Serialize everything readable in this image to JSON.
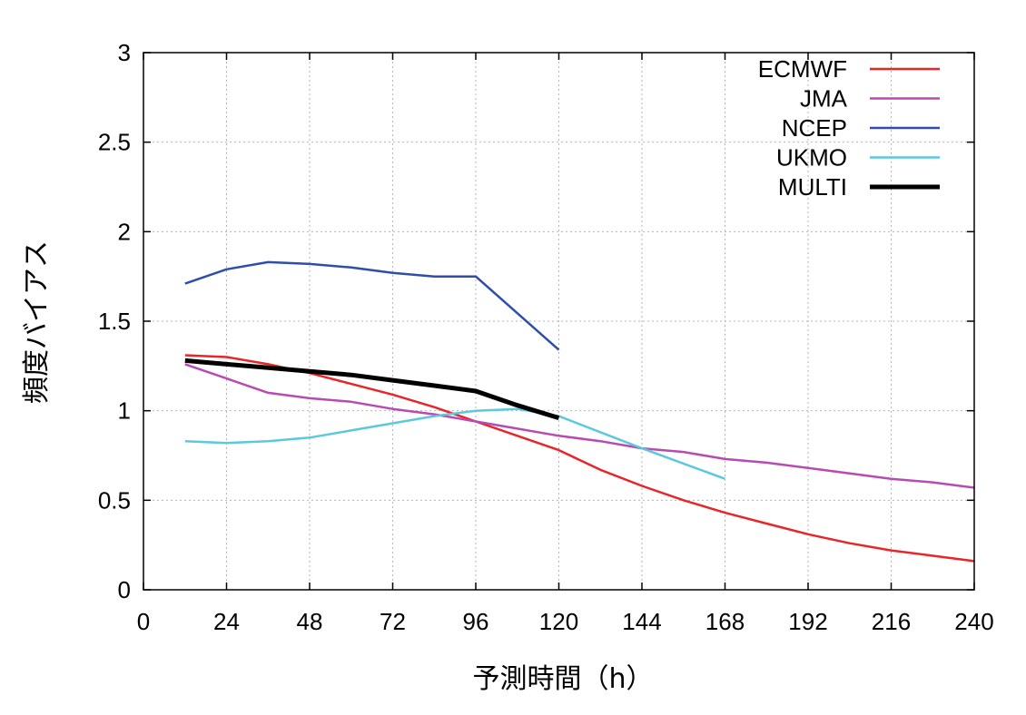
{
  "chart_data": {
    "type": "line",
    "title": "",
    "xlabel": "予測時間（h）",
    "ylabel": "頻度バイアス",
    "xlim": [
      0,
      240
    ],
    "ylim": [
      0,
      3
    ],
    "xticks": [
      0,
      24,
      48,
      72,
      96,
      120,
      144,
      168,
      192,
      216,
      240
    ],
    "yticks": [
      0,
      0.5,
      1,
      1.5,
      2,
      2.5,
      3
    ],
    "xtick_labels": [
      "0",
      "24",
      "48",
      "72",
      "96",
      "120",
      "144",
      "168",
      "192",
      "216",
      "240"
    ],
    "ytick_labels": [
      "0",
      "0.5",
      "1",
      "1.5",
      "2",
      "2.5",
      "3"
    ],
    "grid": true,
    "legend_position": "top-right",
    "series": [
      {
        "name": "ECMWF",
        "color": "#e8262a",
        "width": 2.5,
        "x": [
          12,
          24,
          36,
          48,
          60,
          72,
          84,
          96,
          108,
          120,
          132,
          144,
          156,
          168,
          180,
          192,
          204,
          216,
          228,
          240
        ],
        "y": [
          1.31,
          1.3,
          1.26,
          1.21,
          1.15,
          1.09,
          1.02,
          0.94,
          0.86,
          0.78,
          0.67,
          0.58,
          0.5,
          0.43,
          0.37,
          0.31,
          0.26,
          0.22,
          0.19,
          0.16
        ]
      },
      {
        "name": "JMA",
        "color": "#b84bb1",
        "width": 2.5,
        "x": [
          12,
          24,
          36,
          48,
          60,
          72,
          84,
          96,
          108,
          120,
          132,
          144,
          156,
          168,
          180,
          192,
          204,
          216,
          228,
          240
        ],
        "y": [
          1.26,
          1.18,
          1.1,
          1.07,
          1.05,
          1.01,
          0.98,
          0.94,
          0.9,
          0.86,
          0.83,
          0.79,
          0.77,
          0.73,
          0.71,
          0.68,
          0.65,
          0.62,
          0.6,
          0.57
        ]
      },
      {
        "name": "NCEP",
        "color": "#2e4ea8",
        "width": 2.5,
        "x": [
          12,
          24,
          36,
          48,
          60,
          72,
          84,
          96,
          120
        ],
        "y": [
          1.71,
          1.79,
          1.83,
          1.82,
          1.8,
          1.77,
          1.75,
          1.75,
          1.34
        ]
      },
      {
        "name": "UKMO",
        "color": "#5cc8de",
        "width": 2.5,
        "x": [
          12,
          24,
          36,
          48,
          60,
          72,
          84,
          96,
          108,
          120,
          144,
          168
        ],
        "y": [
          0.83,
          0.82,
          0.83,
          0.85,
          0.89,
          0.93,
          0.97,
          1.0,
          1.01,
          0.97,
          0.79,
          0.62
        ]
      },
      {
        "name": "MULTI",
        "color": "#000000",
        "width": 5,
        "x": [
          12,
          24,
          36,
          48,
          60,
          72,
          84,
          96,
          108,
          120
        ],
        "y": [
          1.28,
          1.26,
          1.24,
          1.22,
          1.2,
          1.17,
          1.14,
          1.11,
          1.03,
          0.96
        ]
      }
    ]
  }
}
